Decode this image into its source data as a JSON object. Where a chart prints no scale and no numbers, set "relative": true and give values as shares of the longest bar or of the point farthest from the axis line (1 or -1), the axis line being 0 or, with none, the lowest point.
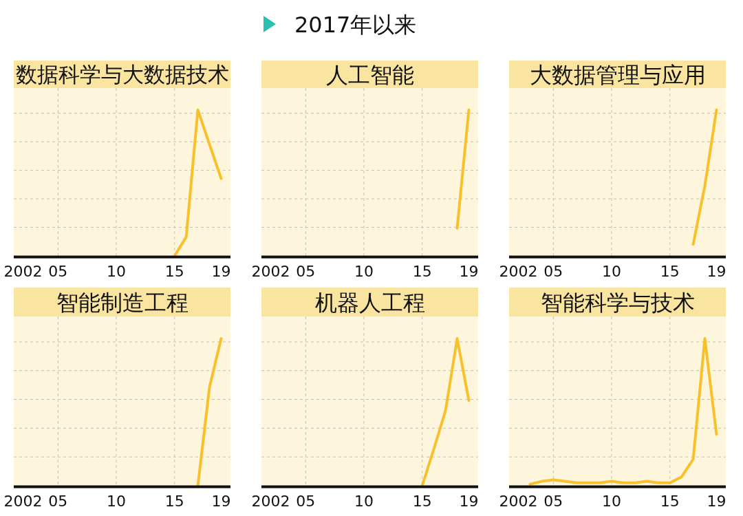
{
  "chart_data": [
    {
      "type": "other",
      "title": "2017年以来"
    },
    {
      "type": "line",
      "title": "数据科学与大数据技术",
      "relative": true,
      "color": "#f8c12c",
      "grid": true,
      "xlim": [
        2001.2,
        2019.8
      ],
      "xticks": [
        {
          "value": 2002,
          "label": "2002"
        },
        {
          "value": 2005,
          "label": "05"
        },
        {
          "value": 2010,
          "label": "10"
        },
        {
          "value": 2015,
          "label": "15"
        },
        {
          "value": 2019,
          "label": "19"
        }
      ],
      "x": [
        2015,
        2016,
        2017,
        2019
      ],
      "values": [
        0,
        0.13,
        1,
        0.53
      ]
    },
    {
      "type": "line",
      "title": "人工智能",
      "relative": true,
      "color": "#f8c12c",
      "grid": true,
      "xlim": [
        2001.2,
        2019.8
      ],
      "xticks": [
        {
          "value": 2002,
          "label": "2002"
        },
        {
          "value": 2005,
          "label": "05"
        },
        {
          "value": 2010,
          "label": "10"
        },
        {
          "value": 2015,
          "label": "15"
        },
        {
          "value": 2019,
          "label": "19"
        }
      ],
      "x": [
        2018,
        2019
      ],
      "values": [
        0.19,
        1
      ]
    },
    {
      "type": "line",
      "title": "大数据管理与应用",
      "relative": true,
      "color": "#f8c12c",
      "grid": true,
      "xlim": [
        2001.2,
        2019.8
      ],
      "xticks": [
        {
          "value": 2002,
          "label": "2002"
        },
        {
          "value": 2005,
          "label": "05"
        },
        {
          "value": 2010,
          "label": "10"
        },
        {
          "value": 2015,
          "label": "15"
        },
        {
          "value": 2019,
          "label": "19"
        }
      ],
      "x": [
        2017,
        2018,
        2019
      ],
      "values": [
        0.08,
        0.48,
        1
      ]
    },
    {
      "type": "line",
      "title": "智能制造工程",
      "relative": true,
      "color": "#f8c12c",
      "grid": true,
      "xlim": [
        2001.2,
        2019.8
      ],
      "xticks": [
        {
          "value": 2002,
          "label": "2002"
        },
        {
          "value": 2005,
          "label": "05"
        },
        {
          "value": 2010,
          "label": "10"
        },
        {
          "value": 2015,
          "label": "15"
        },
        {
          "value": 2019,
          "label": "19"
        }
      ],
      "x": [
        2017,
        2018,
        2019
      ],
      "values": [
        0,
        0.67,
        1
      ]
    },
    {
      "type": "line",
      "title": "机器人工程",
      "relative": true,
      "color": "#f8c12c",
      "grid": true,
      "xlim": [
        2001.2,
        2019.8
      ],
      "xticks": [
        {
          "value": 2002,
          "label": "2002"
        },
        {
          "value": 2005,
          "label": "05"
        },
        {
          "value": 2010,
          "label": "10"
        },
        {
          "value": 2015,
          "label": "15"
        },
        {
          "value": 2019,
          "label": "19"
        }
      ],
      "x": [
        2015,
        2016,
        2017,
        2018,
        2019
      ],
      "values": [
        0,
        0.25,
        0.51,
        1,
        0.58
      ]
    },
    {
      "type": "line",
      "title": "智能科学与技术",
      "relative": true,
      "color": "#f8c12c",
      "grid": true,
      "xlim": [
        2001.2,
        2019.8
      ],
      "xticks": [
        {
          "value": 2002,
          "label": "2002"
        },
        {
          "value": 2005,
          "label": "05"
        },
        {
          "value": 2010,
          "label": "10"
        },
        {
          "value": 2015,
          "label": "15"
        },
        {
          "value": 2019,
          "label": "19"
        }
      ],
      "x": [
        2003,
        2004,
        2005,
        2006,
        2007,
        2008,
        2009,
        2010,
        2011,
        2012,
        2013,
        2014,
        2015,
        2016,
        2017,
        2018,
        2019
      ],
      "values": [
        0.01,
        0.03,
        0.04,
        0.03,
        0.02,
        0.02,
        0.02,
        0.03,
        0.02,
        0.02,
        0.03,
        0.02,
        0.02,
        0.06,
        0.18,
        1,
        0.35
      ]
    }
  ]
}
